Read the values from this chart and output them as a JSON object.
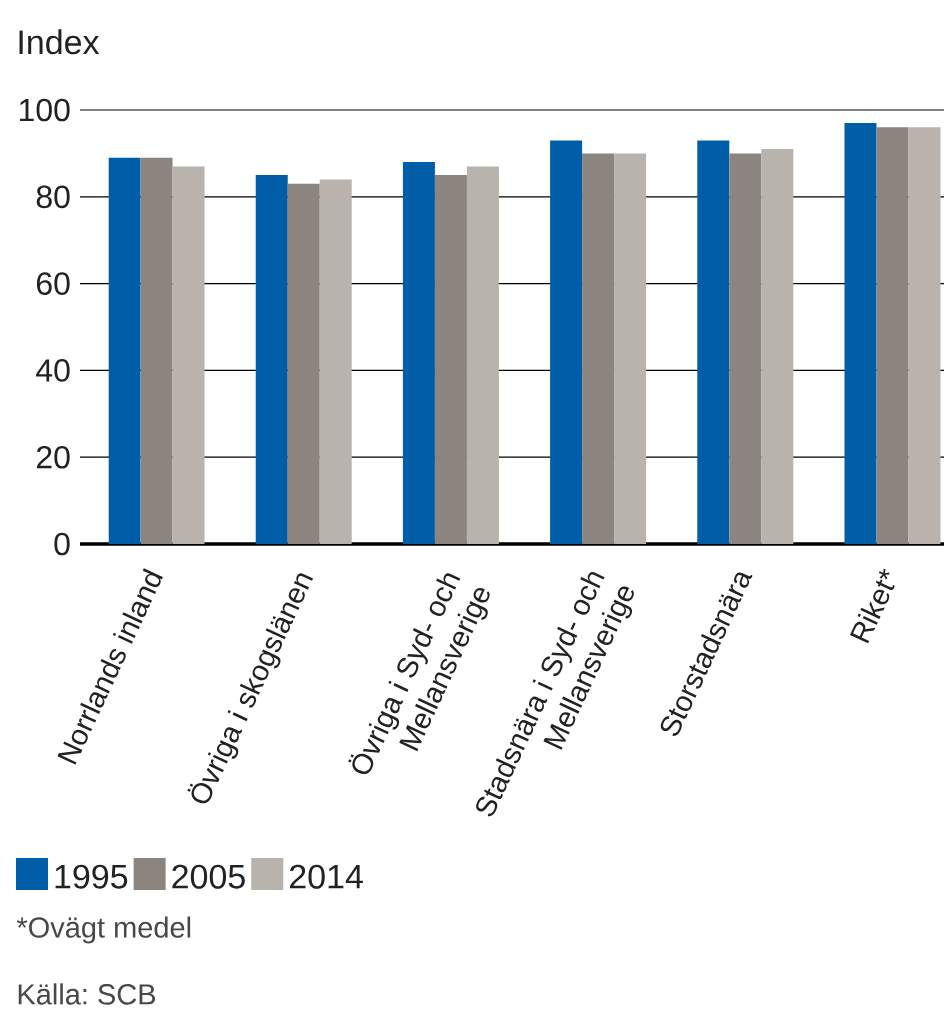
{
  "chart_data": {
    "type": "bar",
    "ylabel": "Index",
    "categories": [
      "Norrlands inland",
      "Övriga i skogslänen",
      "Övriga i Syd- och Mellansverige",
      "Stadsnära i Syd- och Mellansverige",
      "Storstadsnära",
      "Riket*"
    ],
    "series": [
      {
        "name": "1995",
        "color": "#005ea8",
        "values": [
          89,
          85,
          88,
          93,
          93,
          97
        ]
      },
      {
        "name": "2005",
        "color": "#8c847e",
        "values": [
          89,
          83,
          85,
          90,
          90,
          96
        ]
      },
      {
        "name": "2014",
        "color": "#b8b3ac",
        "values": [
          87,
          84,
          87,
          90,
          91,
          96
        ]
      }
    ],
    "ylim": [
      0,
      100
    ],
    "yticks": [
      0,
      20,
      40,
      60,
      80,
      100
    ],
    "grid": "y",
    "legend": "bottom",
    "annotations": [
      "*Ovägt medel",
      "Källa: SCB"
    ]
  }
}
